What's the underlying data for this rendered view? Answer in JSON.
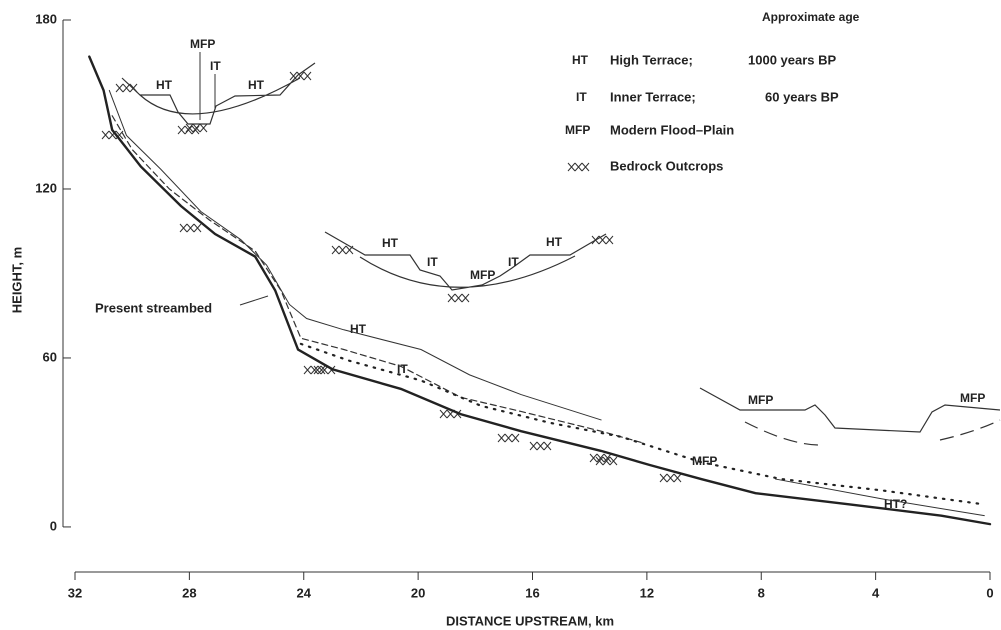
{
  "chart_data": {
    "type": "line",
    "xlabel": "DISTANCE UPSTREAM, km",
    "ylabel": "HEIGHT, m",
    "xlim": [
      32,
      0
    ],
    "xticks": [
      32,
      28,
      24,
      20,
      16,
      12,
      8,
      4,
      0
    ],
    "ylim": [
      -16,
      180
    ],
    "yticks": [
      0,
      60,
      120,
      180
    ],
    "series": [
      {
        "name": "Present streambed",
        "color": "#222",
        "width": 2.4,
        "dash": "none",
        "x": [
          31.5,
          31.0,
          30.7,
          29.7,
          28.3,
          27.1,
          25.7,
          25.0,
          24.2,
          23.0,
          20.6,
          18.5,
          16.4,
          13.6,
          11.9,
          10.1,
          8.2,
          4.9,
          1.7,
          0
        ],
        "values": [
          167,
          155,
          141,
          128,
          114,
          104,
          96,
          84,
          63,
          56,
          49,
          40,
          34,
          27,
          22,
          17,
          12,
          8,
          4,
          1
        ]
      },
      {
        "name": "HT",
        "color": "#333",
        "width": 1,
        "dash": "none",
        "x": [
          30.8,
          30.2,
          29.0,
          27.6,
          26.2,
          25.3,
          24.5,
          23.9,
          22.6,
          19.9,
          18.2,
          16.4,
          13.6,
          12.2,
          7.5,
          3.8,
          0.2
        ],
        "values": [
          155,
          139,
          127,
          112,
          102,
          93,
          79,
          74,
          70,
          63,
          54,
          47,
          38,
          null,
          17,
          10,
          4
        ]
      },
      {
        "name": "IT",
        "color": "#333",
        "width": 1.2,
        "dash": "6 4",
        "x": [
          30.7,
          30.0,
          28.7,
          27.3,
          25.7,
          24.8,
          24.1,
          22.6,
          20.6,
          18.5,
          16.4,
          13.6,
          12.2
        ],
        "values": [
          146,
          134,
          120,
          109,
          98,
          84,
          67,
          63,
          57,
          46,
          41,
          34,
          30
        ]
      },
      {
        "name": "MFP",
        "color": "#222",
        "width": 2.2,
        "dash": "1.5 7",
        "x": [
          24.1,
          22.4,
          19.9,
          17.8,
          15.4,
          12.9,
          10.1,
          7.3,
          3.8,
          0.2
        ],
        "values": [
          65,
          59,
          52,
          43,
          37,
          32,
          23,
          17,
          13,
          8
        ]
      }
    ],
    "annotations": [
      "Present streambed",
      "HT",
      "IT",
      "MFP",
      "HT?"
    ],
    "key": {
      "title": "Approximate age",
      "rows": [
        [
          "HT",
          "High Terrace;",
          "1000 years BP"
        ],
        [
          "IT",
          "Inner Terrace;",
          "60 years BP"
        ],
        [
          "MFP",
          "Modern Flood–Plain"
        ],
        [
          "Bedrock Outcrops"
        ]
      ]
    },
    "insets": [
      {
        "labels": [
          "HT",
          "MFP",
          "IT",
          "HT"
        ]
      },
      {
        "labels": [
          "HT",
          "IT",
          "MFP",
          "IT",
          "HT"
        ]
      },
      {
        "labels": [
          "MFP",
          "MFP"
        ]
      }
    ]
  }
}
